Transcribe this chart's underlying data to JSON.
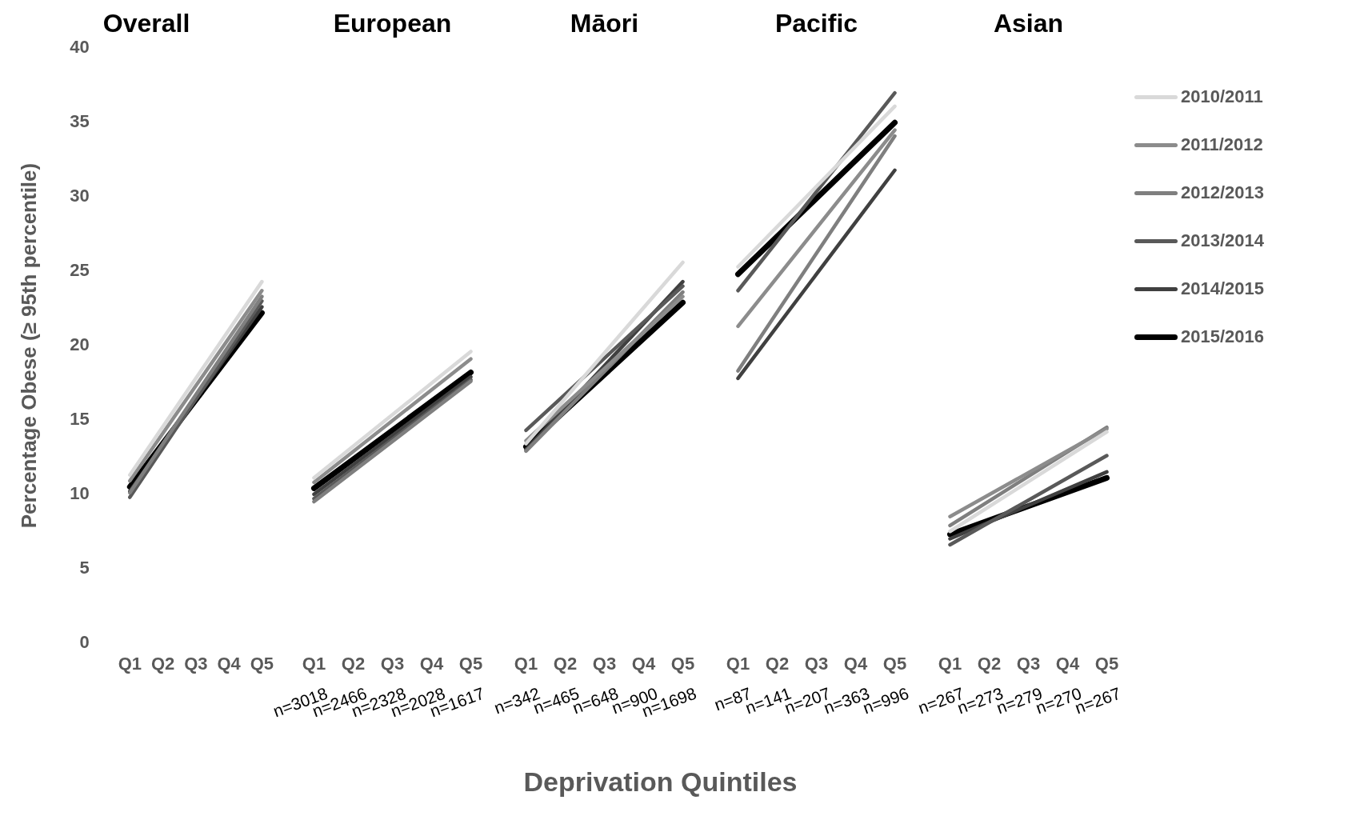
{
  "chart_data": [
    {
      "type": "line",
      "title": "Overall",
      "ylabel": "Percentage Obese (≥ 95th percentile)",
      "categories": [
        "Q1",
        "Q2",
        "Q3",
        "Q4",
        "Q5"
      ],
      "ylim": [
        0,
        40
      ],
      "yticks": [
        0,
        5,
        10,
        15,
        20,
        25,
        30,
        35,
        40
      ],
      "grid": false,
      "series": [
        {
          "color": "#d9d9d9",
          "values": [
            11.3,
            null,
            null,
            null,
            24.3
          ]
        },
        {
          "color": "#8c8c8c",
          "values": [
            10.9,
            null,
            null,
            null,
            23.7
          ]
        },
        {
          "color": "#7f7f7f",
          "values": [
            10.1,
            null,
            null,
            null,
            23.3
          ]
        },
        {
          "color": "#595959",
          "values": [
            9.8,
            null,
            null,
            null,
            23.0
          ]
        },
        {
          "color": "#404040",
          "values": [
            10.2,
            null,
            null,
            null,
            22.6
          ]
        },
        {
          "color": "#000000",
          "values": [
            10.5,
            null,
            null,
            null,
            22.2
          ]
        }
      ]
    },
    {
      "type": "line",
      "title": "European",
      "categories": [
        "Q1",
        "Q2",
        "Q3",
        "Q4",
        "Q5"
      ],
      "ylim": [
        0,
        40
      ],
      "yticks": [
        0,
        5,
        10,
        15,
        20,
        25,
        30,
        35,
        40
      ],
      "grid": false,
      "tick_labels": "x",
      "annotations": [
        "n=3018",
        "n=2466",
        "n=2328",
        "n=2028",
        "n=1617"
      ],
      "series": [
        {
          "color": "#d9d9d9",
          "values": [
            11.1,
            null,
            null,
            null,
            19.6
          ]
        },
        {
          "color": "#8c8c8c",
          "values": [
            10.8,
            null,
            null,
            null,
            19.1
          ]
        },
        {
          "color": "#7f7f7f",
          "values": [
            9.5,
            null,
            null,
            null,
            17.6
          ]
        },
        {
          "color": "#595959",
          "values": [
            9.7,
            null,
            null,
            null,
            17.7
          ]
        },
        {
          "color": "#404040",
          "values": [
            10.0,
            null,
            null,
            null,
            17.9
          ]
        },
        {
          "color": "#000000",
          "values": [
            10.4,
            null,
            null,
            null,
            18.2
          ]
        }
      ]
    },
    {
      "type": "line",
      "title": "Māori",
      "xlabel": "Deprivation Quintiles",
      "categories": [
        "Q1",
        "Q2",
        "Q3",
        "Q4",
        "Q5"
      ],
      "ylim": [
        0,
        40
      ],
      "yticks": [
        0,
        5,
        10,
        15,
        20,
        25,
        30,
        35,
        40
      ],
      "grid": false,
      "tick_labels": "x",
      "annotations": [
        "n=342",
        "n=465",
        "n=648",
        "n=900",
        "n=1698"
      ],
      "series": [
        {
          "color": "#d9d9d9",
          "values": [
            13.4,
            null,
            null,
            null,
            25.6
          ]
        },
        {
          "color": "#8c8c8c",
          "values": [
            13.6,
            null,
            null,
            null,
            23.3
          ]
        },
        {
          "color": "#7f7f7f",
          "values": [
            12.9,
            null,
            null,
            null,
            23.6
          ]
        },
        {
          "color": "#595959",
          "values": [
            14.3,
            null,
            null,
            null,
            24.0
          ]
        },
        {
          "color": "#404040",
          "values": [
            13.0,
            null,
            null,
            null,
            24.3
          ]
        },
        {
          "color": "#000000",
          "values": [
            13.2,
            null,
            null,
            null,
            22.9
          ]
        }
      ]
    },
    {
      "type": "line",
      "title": "Pacific",
      "categories": [
        "Q1",
        "Q2",
        "Q3",
        "Q4",
        "Q5"
      ],
      "ylim": [
        0,
        40
      ],
      "yticks": [
        0,
        5,
        10,
        15,
        20,
        25,
        30,
        35,
        40
      ],
      "grid": false,
      "tick_labels": "x",
      "annotations": [
        "n=87",
        "n=141",
        "n=207",
        "n=363",
        "n=996"
      ],
      "series": [
        {
          "color": "#d9d9d9",
          "values": [
            25.3,
            null,
            null,
            null,
            36.1
          ]
        },
        {
          "color": "#8c8c8c",
          "values": [
            21.3,
            null,
            null,
            null,
            34.5
          ]
        },
        {
          "color": "#7f7f7f",
          "values": [
            18.3,
            null,
            null,
            null,
            34.1
          ]
        },
        {
          "color": "#595959",
          "values": [
            23.7,
            null,
            null,
            null,
            37.0
          ]
        },
        {
          "color": "#404040",
          "values": [
            17.8,
            null,
            null,
            null,
            31.8
          ]
        },
        {
          "color": "#000000",
          "values": [
            24.8,
            null,
            null,
            null,
            35.0
          ]
        }
      ]
    },
    {
      "type": "line",
      "title": "Asian",
      "categories": [
        "Q1",
        "Q2",
        "Q3",
        "Q4",
        "Q5"
      ],
      "ylim": [
        0,
        40
      ],
      "yticks": [
        0,
        5,
        10,
        15,
        20,
        25,
        30,
        35,
        40
      ],
      "grid": false,
      "tick_labels": "x",
      "legend": "top right",
      "annotations": [
        "n=267",
        "n=273",
        "n=279",
        "n=270",
        "n=267"
      ],
      "series": [
        {
          "name": "2010/2011",
          "color": "#d9d9d9",
          "values": [
            7.5,
            null,
            null,
            null,
            14.2
          ]
        },
        {
          "name": "2011/2012",
          "color": "#8c8c8c",
          "values": [
            8.5,
            null,
            null,
            null,
            14.4
          ]
        },
        {
          "name": "2012/2013",
          "color": "#7f7f7f",
          "values": [
            7.9,
            null,
            null,
            null,
            14.5
          ]
        },
        {
          "name": "2013/2014",
          "color": "#595959",
          "values": [
            6.6,
            null,
            null,
            null,
            12.6
          ]
        },
        {
          "name": "2014/2015",
          "color": "#404040",
          "values": [
            7.0,
            null,
            null,
            null,
            11.5
          ]
        },
        {
          "name": "2015/2016",
          "color": "#000000",
          "values": [
            7.3,
            null,
            null,
            null,
            11.1
          ]
        }
      ]
    }
  ]
}
